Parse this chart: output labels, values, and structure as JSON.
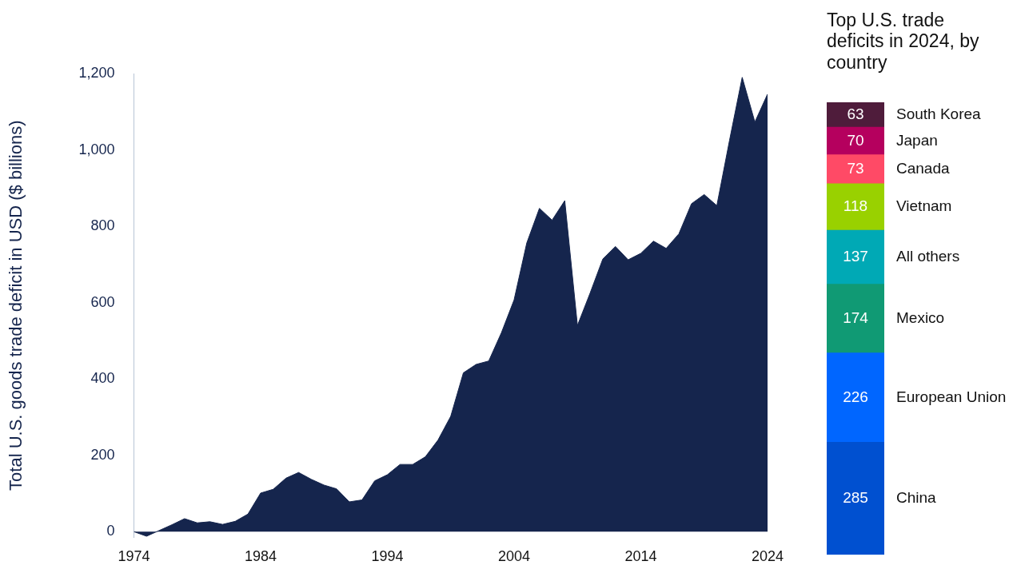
{
  "chart_data": [
    {
      "type": "area",
      "ylabel": "Total U.S. goods trade deficit in USD ($ billions)",
      "color": "#15254d",
      "x": [
        1974,
        1975,
        1976,
        1977,
        1978,
        1979,
        1980,
        1981,
        1982,
        1983,
        1984,
        1985,
        1986,
        1987,
        1988,
        1989,
        1990,
        1991,
        1992,
        1993,
        1994,
        1995,
        1996,
        1997,
        1998,
        1999,
        2000,
        2001,
        2002,
        2003,
        2004,
        2005,
        2006,
        2007,
        2008,
        2009,
        2010,
        2011,
        2012,
        2013,
        2014,
        2015,
        2016,
        2017,
        2018,
        2019,
        2020,
        2021,
        2022,
        2023,
        2024
      ],
      "values": [
        0,
        -12,
        3,
        18,
        34,
        23,
        26,
        19,
        27,
        46,
        101,
        111,
        140,
        155,
        137,
        122,
        112,
        78,
        83,
        133,
        149,
        176,
        176,
        196,
        240,
        302,
        416,
        438,
        447,
        521,
        607,
        756,
        847,
        816,
        867,
        540,
        625,
        714,
        747,
        712,
        729,
        761,
        742,
        780,
        859,
        883,
        854,
        1025,
        1190,
        1073,
        1146
      ],
      "xlim": [
        1974,
        2024
      ],
      "xticks": [
        1974,
        1984,
        1994,
        2004,
        2014,
        2024
      ],
      "ylim": [
        -15,
        1200
      ],
      "yticks": [
        0,
        200,
        400,
        600,
        800,
        {
          "value": 1000,
          "label": "1,000"
        },
        {
          "value": 1200,
          "label": "1,200"
        }
      ],
      "grid": false,
      "legend": false
    },
    {
      "type": "bar",
      "title": "Top U.S. trade deficits in 2024, by country",
      "categories": [
        null
      ],
      "stacked": true,
      "data_labels": true,
      "legend": "right",
      "series": [
        {
          "name": "China",
          "color": "#0050d0",
          "values": [
            285
          ]
        },
        {
          "name": "European Union",
          "color": "#0066ff",
          "values": [
            226
          ]
        },
        {
          "name": "Mexico",
          "color": "#109a74",
          "values": [
            174
          ]
        },
        {
          "name": "All others",
          "color": "#00a9b5",
          "values": [
            137
          ]
        },
        {
          "name": "Vietnam",
          "color": "#99d100",
          "values": [
            118
          ]
        },
        {
          "name": "Canada",
          "color": "#ff4a66",
          "values": [
            73
          ]
        },
        {
          "name": "Japan",
          "color": "#b5005e",
          "values": [
            70
          ]
        },
        {
          "name": "South Korea",
          "color": "#4f1c3b",
          "values": [
            63
          ]
        }
      ]
    }
  ]
}
